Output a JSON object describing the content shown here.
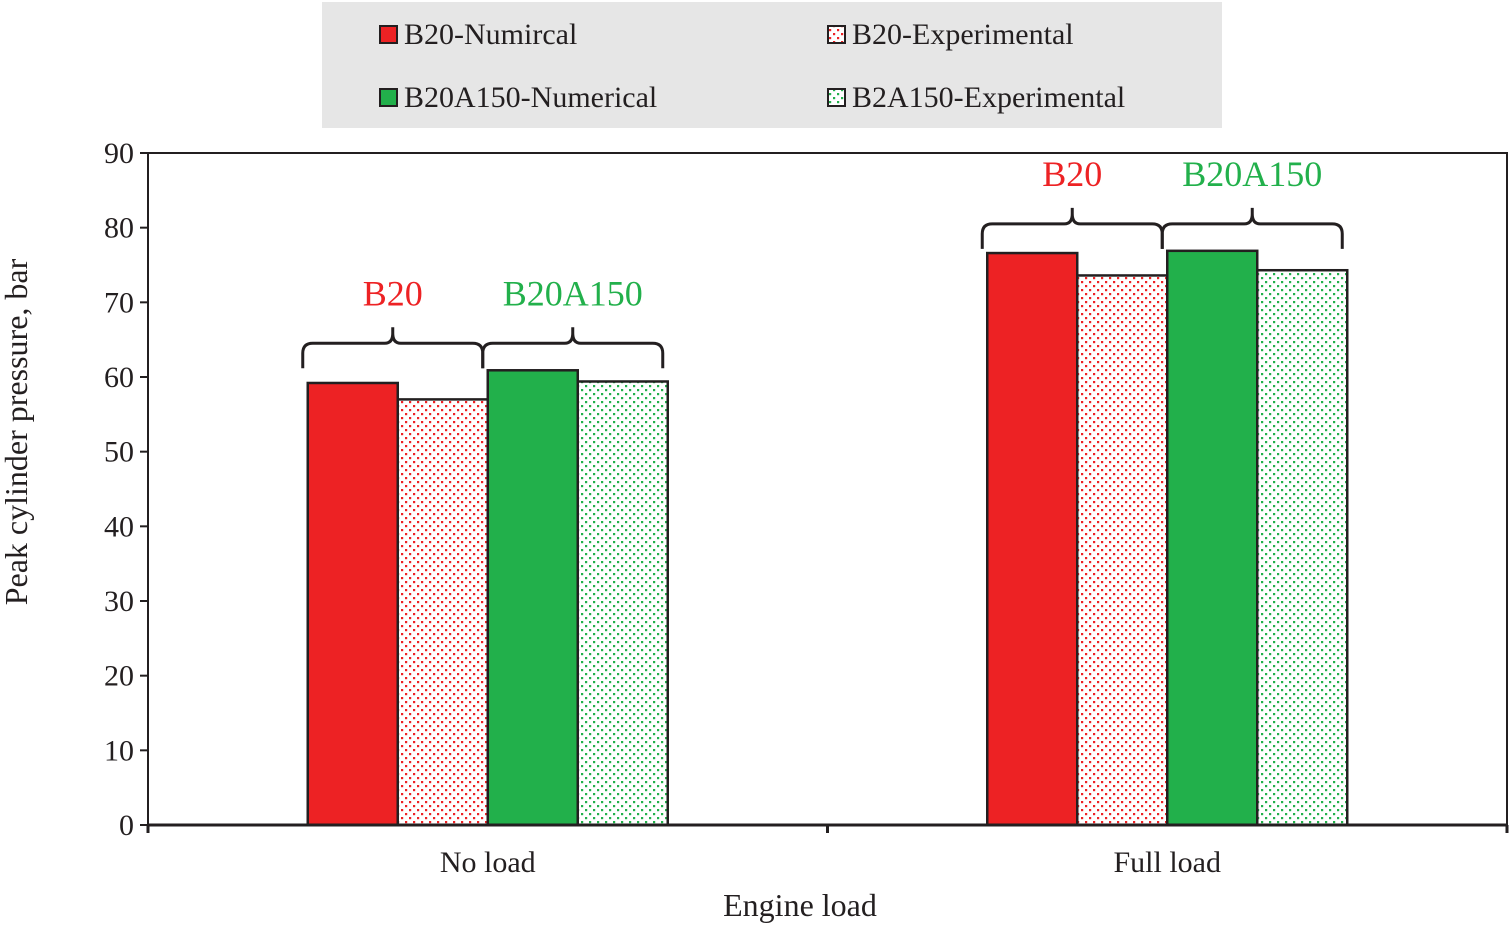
{
  "chart_data": {
    "type": "bar",
    "title": "",
    "xlabel": "Engine load",
    "ylabel": "Peak cylinder pressure, bar",
    "categories": [
      "No load",
      "Full load"
    ],
    "ylim": [
      0,
      90
    ],
    "yticks": [
      0,
      10,
      20,
      30,
      40,
      50,
      60,
      70,
      80,
      90
    ],
    "grid": false,
    "legend_position": "top",
    "series": [
      {
        "name": "B20-Numircal",
        "values": [
          59.2,
          76.6
        ],
        "color": "#ed2224",
        "pattern": "solid"
      },
      {
        "name": "B20-Experimental",
        "values": [
          57.0,
          73.6
        ],
        "color": "#ed2224",
        "pattern": "dotted"
      },
      {
        "name": "B20A150-Numerical",
        "values": [
          60.9,
          76.9
        ],
        "color": "#22b04b",
        "pattern": "solid"
      },
      {
        "name": "B2A150-Experimental",
        "values": [
          59.4,
          74.3
        ],
        "color": "#22b04b",
        "pattern": "dotted"
      }
    ],
    "annotations": [
      {
        "text": "B20",
        "category": "No load",
        "color": "#ed2224"
      },
      {
        "text": "B20A150",
        "category": "No load",
        "color": "#22b04b"
      },
      {
        "text": "B20",
        "category": "Full load",
        "color": "#ed2224"
      },
      {
        "text": "B20A150",
        "category": "Full load",
        "color": "#22b04b"
      }
    ]
  }
}
